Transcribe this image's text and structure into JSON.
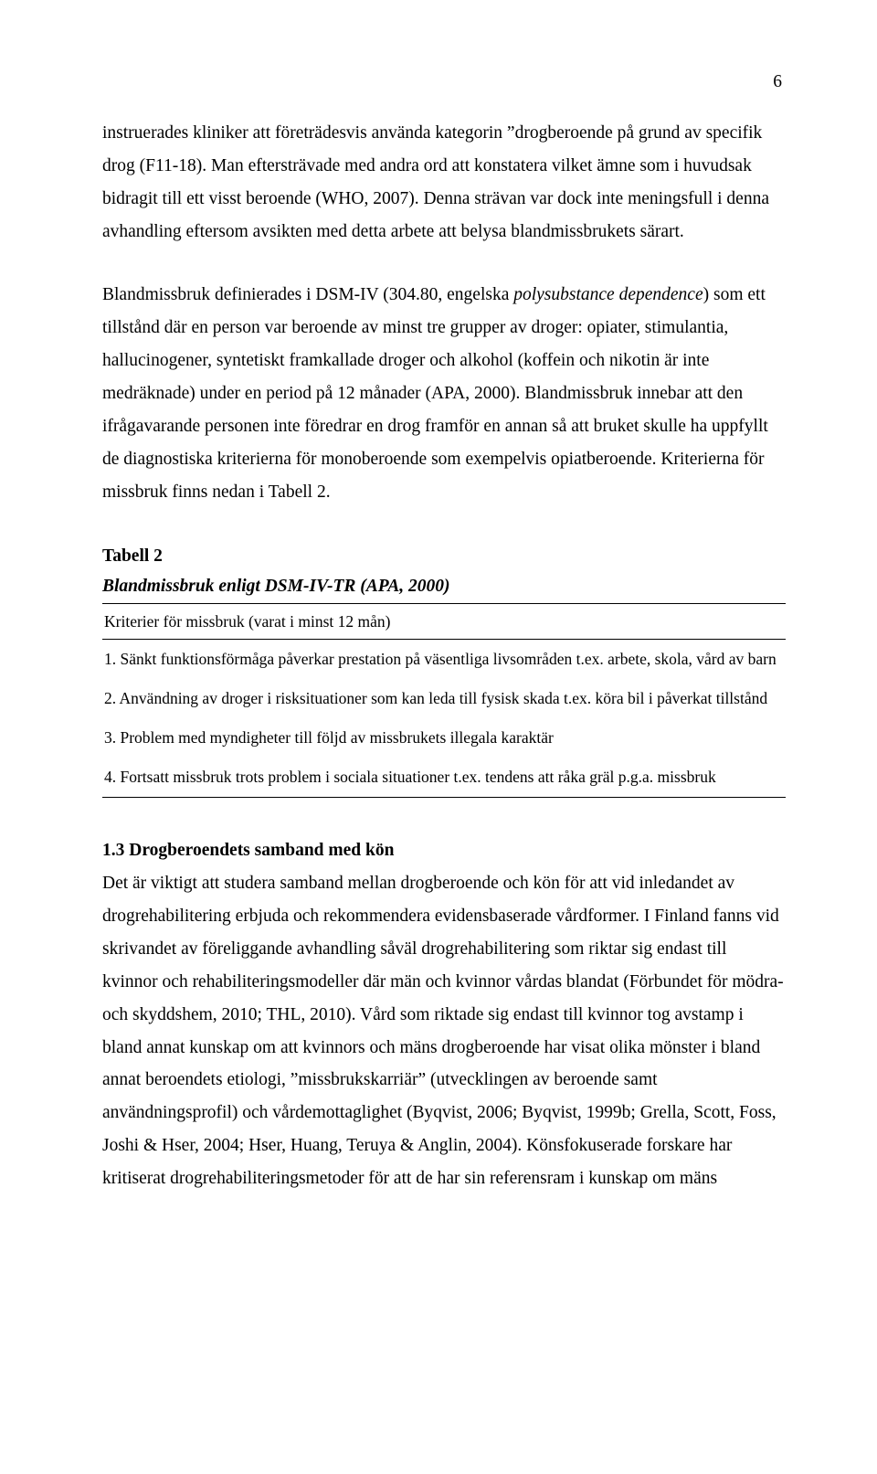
{
  "page": {
    "number": "6"
  },
  "para1": {
    "t1": "instruerades kliniker att företrädesvis använda kategorin ”drogberoende på grund av specifik drog (F11-18). Man eftersträvade med andra ord att konstatera vilket ämne som i huvudsak bidragit till ett visst beroende (WHO, 2007). Denna strävan var dock inte meningsfull i denna avhandling eftersom avsikten med detta arbete att belysa blandmissbrukets särart."
  },
  "para2": {
    "t1": "Blandmissbruk definierades i DSM-IV (304.80, engelska ",
    "italic1": "polysubstance dependence",
    "t2": ") som ett tillstånd där en person var beroende av minst tre grupper av droger: opiater, stimulantia, hallucinogener, syntetiskt framkallade droger och alkohol (koffein och nikotin är inte medräknade) under en period på 12 månader (APA, 2000). Blandmissbruk innebar att den ifrågavarande personen inte föredrar en drog framför en annan så att bruket skulle ha uppfyllt de diagnostiska kriterierna för monoberoende som exempelvis opiatberoende.  Kriterierna för missbruk finns nedan i Tabell 2."
  },
  "table2": {
    "heading": "Tabell 2",
    "caption": "Blandmissbruk enligt DSM-IV-TR (APA, 2000)",
    "header": "Kriterier för missbruk (varat i minst 12 mån)",
    "rows": [
      "1. Sänkt funktionsförmåga påverkar prestation på väsentliga livsområden t.ex. arbete, skola, vård av barn",
      "2. Användning av droger i risksituationer som kan leda till fysisk skada t.ex. köra bil i påverkat  tillstånd",
      "3. Problem med myndigheter till följd av missbrukets illegala karaktär",
      "4. Fortsatt missbruk trots problem i sociala situationer t.ex. tendens att råka gräl p.g.a. missbruk"
    ]
  },
  "section": {
    "heading": "1.3 Drogberoendets samband med kön",
    "body": "Det är viktigt att studera samband mellan drogberoende och kön för att vid inledandet av drogrehabilitering erbjuda och rekommendera evidensbaserade vårdformer. I Finland fanns vid skrivandet av föreliggande avhandling såväl drogrehabilitering som riktar sig endast till kvinnor och rehabiliteringsmodeller där män och kvinnor vårdas blandat (Förbundet för mödra- och skyddshem, 2010; THL, 2010). Vård som riktade sig endast till kvinnor tog avstamp i bland annat kunskap om att kvinnors och mäns drogberoende har visat olika mönster i bland annat beroendets etiologi, ”missbrukskarriär” (utvecklingen av beroende samt användningsprofil) och vårdemottaglighet (Byqvist, 2006; Byqvist, 1999b; Grella, Scott, Foss, Joshi & Hser, 2004; Hser, Huang, Teruya & Anglin, 2004). Könsfokuserade forskare har kritiserat drogrehabiliteringsmetoder för att de har sin referensram i kunskap om mäns"
  }
}
